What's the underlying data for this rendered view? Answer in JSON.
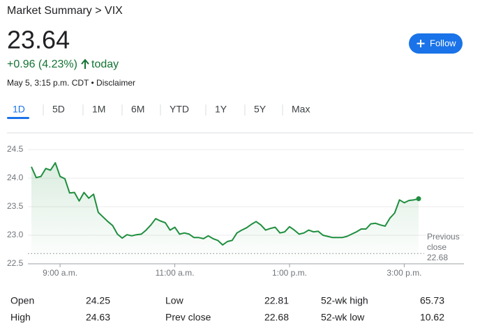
{
  "header": {
    "breadcrumb": "Market Summary > VIX",
    "price": "23.64",
    "change": "+0.96 (4.23%)",
    "change_period": "today",
    "timestamp": "May 5, 3:15 p.m. CDT • Disclaimer",
    "follow_button": "Follow"
  },
  "tabs": [
    "1D",
    "5D",
    "1M",
    "6M",
    "YTD",
    "1Y",
    "5Y",
    "Max"
  ],
  "chart_data": {
    "type": "line",
    "color": "#1e8e3e",
    "x": [
      510,
      515,
      520,
      525,
      530,
      535,
      540,
      545,
      550,
      555,
      560,
      565,
      570,
      575,
      580,
      585,
      590,
      595,
      600,
      605,
      610,
      615,
      620,
      625,
      630,
      635,
      640,
      645,
      650,
      655,
      660,
      665,
      670,
      675,
      680,
      685,
      690,
      695,
      700,
      705,
      710,
      715,
      720,
      725,
      730,
      735,
      740,
      745,
      750,
      755,
      760,
      765,
      770,
      775,
      780,
      785,
      790,
      795,
      800,
      805,
      810,
      815,
      820,
      825,
      830,
      835,
      840,
      845,
      850,
      855,
      860,
      865,
      870,
      875,
      880,
      885,
      890,
      895,
      900,
      905,
      910,
      915
    ],
    "values": [
      24.2,
      24.01,
      24.03,
      24.17,
      24.14,
      24.27,
      24.03,
      23.99,
      23.74,
      23.75,
      23.6,
      23.75,
      23.65,
      23.72,
      23.4,
      23.32,
      23.24,
      23.17,
      23.02,
      22.95,
      23.01,
      22.99,
      23.01,
      23.02,
      23.09,
      23.18,
      23.29,
      23.25,
      23.22,
      23.09,
      23.14,
      23.02,
      23.04,
      23.02,
      22.96,
      22.96,
      22.94,
      22.99,
      22.94,
      22.91,
      22.83,
      22.89,
      22.91,
      23.04,
      23.09,
      23.13,
      23.19,
      23.24,
      23.18,
      23.09,
      23.12,
      23.14,
      23.04,
      23.06,
      23.15,
      23.09,
      23.02,
      23.04,
      23.09,
      23.06,
      23.07,
      23.0,
      22.98,
      22.96,
      22.96,
      22.96,
      22.98,
      23.02,
      23.06,
      23.11,
      23.11,
      23.2,
      23.21,
      23.18,
      23.16,
      23.3,
      23.39,
      23.62,
      23.57,
      23.61,
      23.62,
      23.64
    ],
    "xlim": [
      510,
      915
    ],
    "xticks": [
      {
        "value": 540,
        "label": "9:00 a.m."
      },
      {
        "value": 660,
        "label": "11:00 a.m."
      },
      {
        "value": 780,
        "label": "1:00 p.m."
      },
      {
        "value": 900,
        "label": "3:00 p.m."
      }
    ],
    "ylim": [
      22.5,
      24.5
    ],
    "yticks": [
      24.5,
      {
        "value": 24,
        "label": "24.0"
      },
      23.5,
      {
        "value": 23,
        "label": "23.0"
      },
      22.5
    ],
    "grid": true,
    "previous_close": 22.68,
    "previous_close_label": "Previous close"
  },
  "stats": [
    {
      "label": "Open",
      "value": "24.25"
    },
    {
      "label": "High",
      "value": "24.63"
    },
    {
      "label": "Low",
      "value": "22.81"
    },
    {
      "label": "Prev close",
      "value": "22.68"
    },
    {
      "label": "52-wk high",
      "value": "65.73"
    },
    {
      "label": "52-wk low",
      "value": "10.62"
    }
  ]
}
